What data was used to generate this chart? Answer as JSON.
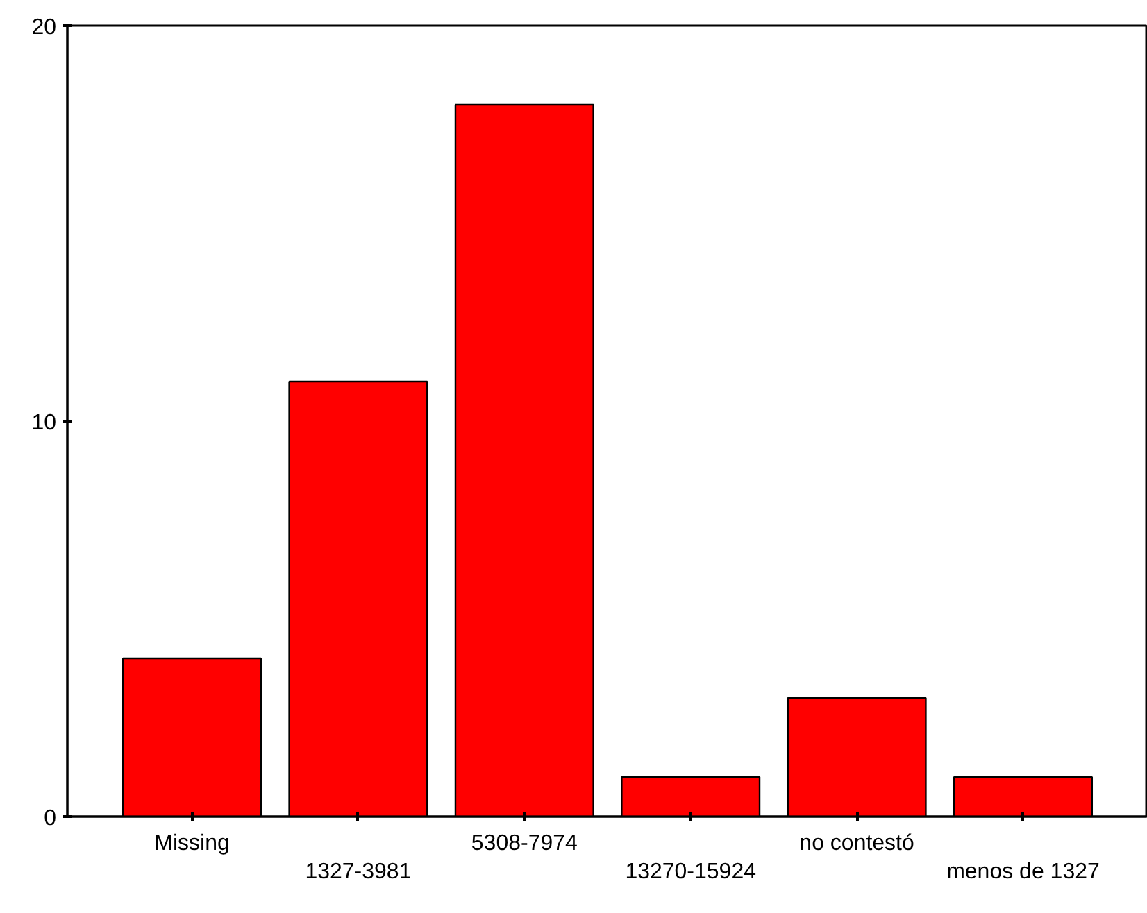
{
  "chart_data": {
    "type": "bar",
    "categories": [
      "Missing",
      "1327-3981",
      "5308-7974",
      "13270-15924",
      "no contestó",
      "menos de 1327"
    ],
    "values": [
      4,
      11,
      18,
      1,
      3,
      1
    ],
    "color": "#ff0000",
    "ylim": [
      0,
      20
    ],
    "yticks": [
      0,
      10,
      20
    ],
    "grid": false
  }
}
